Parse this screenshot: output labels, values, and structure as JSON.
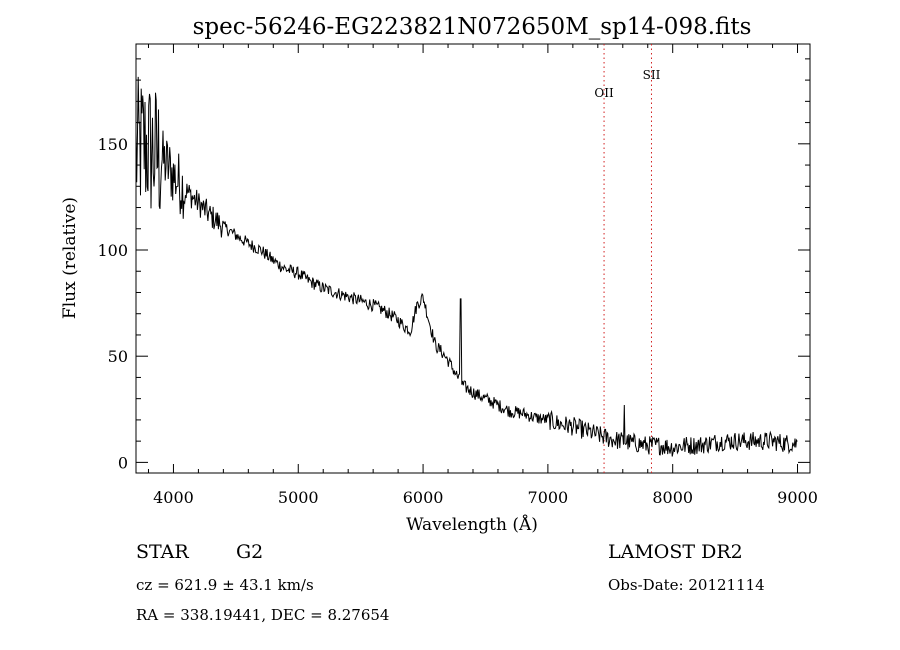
{
  "chart_data": {
    "type": "line",
    "title": "spec-56246-EG223821N072650M_sp14-098.fits",
    "xlabel": "Wavelength (Å)",
    "ylabel": "Flux (relative)",
    "xlim": [
      3700,
      9100
    ],
    "ylim": [
      -5,
      197
    ],
    "xticks": [
      {
        "value": 4000,
        "label": "4000"
      },
      {
        "value": 5000,
        "label": "5000"
      },
      {
        "value": 6000,
        "label": "6000"
      },
      {
        "value": 7000,
        "label": "7000"
      },
      {
        "value": 8000,
        "label": "8000"
      },
      {
        "value": 9000,
        "label": "9000"
      }
    ],
    "yticks": [
      {
        "value": 0,
        "label": "0"
      },
      {
        "value": 50,
        "label": "50"
      },
      {
        "value": 100,
        "label": "100"
      },
      {
        "value": 150,
        "label": "150"
      }
    ],
    "grid": false,
    "series": [
      {
        "color": "#000000",
        "x": [
          3700,
          3750,
          3800,
          3850,
          3900,
          3950,
          4000,
          4100,
          4200,
          4300,
          4400,
          4500,
          4600,
          4700,
          4800,
          4900,
          5000,
          5100,
          5200,
          5300,
          5400,
          5500,
          5600,
          5700,
          5800,
          5850,
          5900,
          5950,
          6000,
          6050,
          6100,
          6150,
          6200,
          6250,
          6280,
          6300,
          6320,
          6350,
          6400,
          6500,
          6600,
          6700,
          6800,
          6900,
          7000,
          7100,
          7200,
          7300,
          7400,
          7500,
          7600,
          7700,
          7800,
          7900,
          8000,
          8100,
          8200,
          8300,
          8400,
          8500,
          8600,
          8700,
          8800,
          8900,
          9000
        ],
        "y": [
          145,
          150,
          148,
          145,
          143,
          140,
          135,
          128,
          122,
          116,
          111,
          107,
          103,
          100,
          95,
          91,
          89,
          85,
          82,
          80,
          78,
          76,
          74,
          71,
          67,
          64,
          62,
          74,
          78,
          66,
          55,
          52,
          48,
          43,
          40,
          38,
          36,
          35,
          33,
          30,
          27,
          24,
          23,
          21,
          20,
          18,
          17,
          15,
          13,
          11,
          10,
          9,
          8,
          8,
          7,
          8,
          8,
          9,
          10,
          10,
          10,
          10,
          10,
          9,
          9
        ]
      }
    ],
    "spectral_lines": [
      {
        "label": "OII",
        "x": 7450,
        "color": "#d22020"
      },
      {
        "label": "SII",
        "x": 7830,
        "color": "#d22020"
      }
    ]
  },
  "info": {
    "object_class": "STAR",
    "subclass": "G2",
    "survey": "LAMOST DR2",
    "cz": "cz = 621.9 ± 43.1 km/s",
    "obs_date": "Obs-Date: 20121114",
    "coords": "RA = 338.19441, DEC =   8.27654"
  }
}
